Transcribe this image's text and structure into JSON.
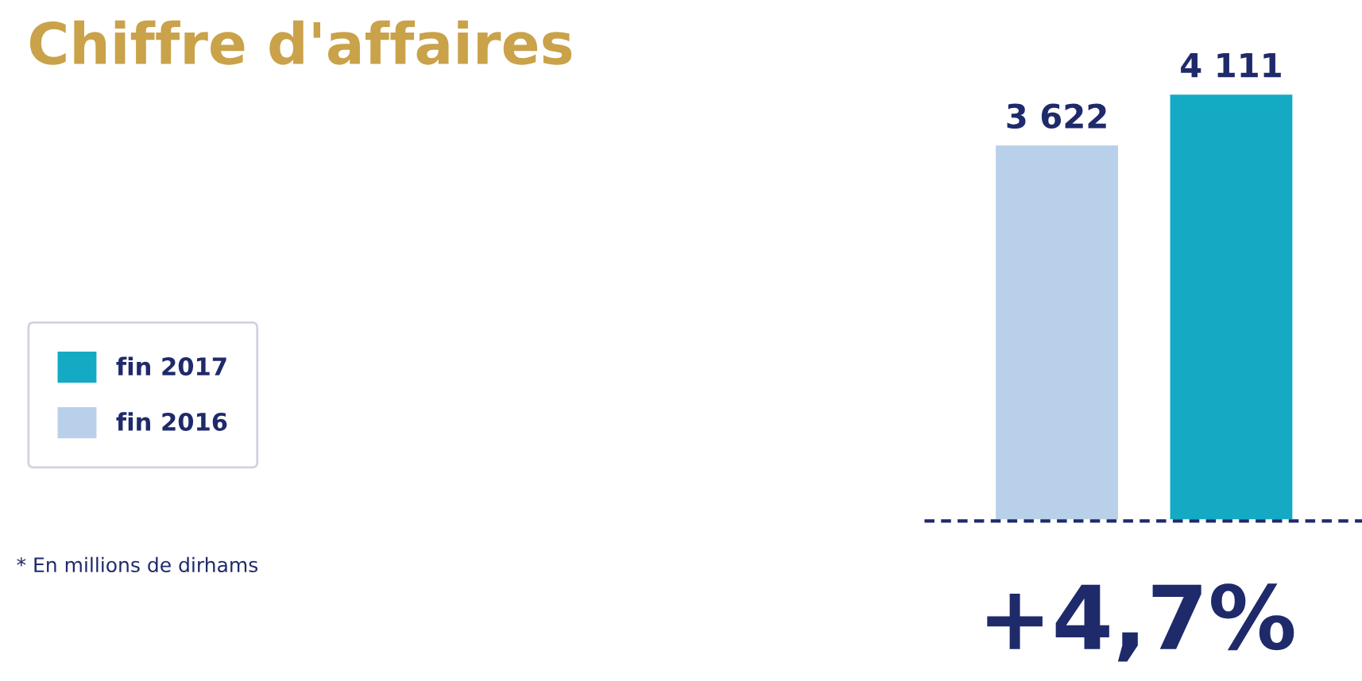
{
  "chart_data": {
    "type": "bar",
    "title": "Chiffre d'affaires",
    "categories": [
      null
    ],
    "series": [
      {
        "name": "fin 2016",
        "color": "#b8d0ea",
        "values": [
          3622
        ],
        "value_labels": [
          "3 622"
        ]
      },
      {
        "name": "fin 2017",
        "color": "#14aac4",
        "values": [
          4111
        ],
        "value_labels": [
          "4 111"
        ]
      }
    ],
    "annotations": [
      "+4,7%",
      "* En millions de dirhams"
    ],
    "legend": "left",
    "grid": false
  }
}
